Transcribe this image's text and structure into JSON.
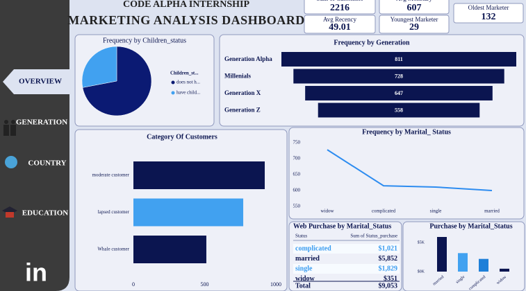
{
  "header": {
    "org": "CODE ALPHA INTERNSHIP",
    "title": "MARKETING ANALYSIS DASHBOARD"
  },
  "nav": [
    "OVERVIEW",
    "GENERATION",
    "COUNTRY",
    "EDUCATION"
  ],
  "logo": "in",
  "kpis": [
    {
      "label": "Sum of Customers",
      "value": "2216"
    },
    {
      "label": "Avg Monetary",
      "value": "607"
    },
    {
      "label": "Oldest Marketer",
      "value": "132"
    },
    {
      "label": "Avg Recency",
      "value": "49.01"
    },
    {
      "label": "Youngest Marketer",
      "value": "29"
    }
  ],
  "chart_data": [
    {
      "type": "pie",
      "title": "Frequency by Children_status",
      "legend_title": "Children_st...",
      "categories": [
        "does not h...",
        "have child..."
      ],
      "values": [
        72,
        28
      ],
      "colors": [
        "#0b1a73",
        "#41a1f0"
      ]
    },
    {
      "type": "funnel",
      "title": "Frequency by Generation",
      "categories": [
        "Generation Alpha",
        "Millenials",
        "Generation X",
        "Generation Z"
      ],
      "values": [
        811,
        728,
        647,
        558
      ],
      "color": "#0b1550"
    },
    {
      "type": "hbar",
      "title": "Category Of Customers",
      "categories": [
        "moderate customer",
        "lapsed customer",
        "Whale customer"
      ],
      "values": [
        922,
        771,
        512
      ],
      "colors": [
        "#0b1550",
        "#41a1f0",
        "#0b1550"
      ],
      "xlim": [
        0,
        1000
      ],
      "xticks": [
        0,
        500,
        1000
      ]
    },
    {
      "type": "line",
      "title": "Frequency by Marital_ Status",
      "categories": [
        "widow",
        "complicated",
        "single",
        "married"
      ],
      "values": [
        728,
        615,
        611,
        600
      ],
      "color": "#2d8cf0",
      "ylim": [
        550,
        750
      ],
      "yticks": [
        550,
        600,
        650,
        700,
        750
      ]
    },
    {
      "type": "bar",
      "title": "Purchase by Marital_Status",
      "categories": [
        "married",
        "single",
        "complicated",
        "widow"
      ],
      "values": [
        6000,
        3200,
        2200,
        500
      ],
      "colors": [
        "#0b1550",
        "#41a1f0",
        "#1e7fd8",
        "#0b1550"
      ],
      "ylim": [
        0,
        6000
      ],
      "yticks": [
        {
          "value": 0,
          "label": "$0K"
        },
        {
          "value": 5000,
          "label": "$5K"
        }
      ]
    }
  ],
  "table": {
    "title": "Web Purchase by Marital_Status",
    "columns": [
      "Status",
      "Sum of Status_purchase"
    ],
    "rows": [
      [
        "complicated",
        "$1,021"
      ],
      [
        "married",
        "$5,852"
      ],
      [
        "single",
        "$1,829"
      ],
      [
        "widow",
        "$351"
      ]
    ],
    "total": [
      "Total",
      "$9,053"
    ]
  }
}
